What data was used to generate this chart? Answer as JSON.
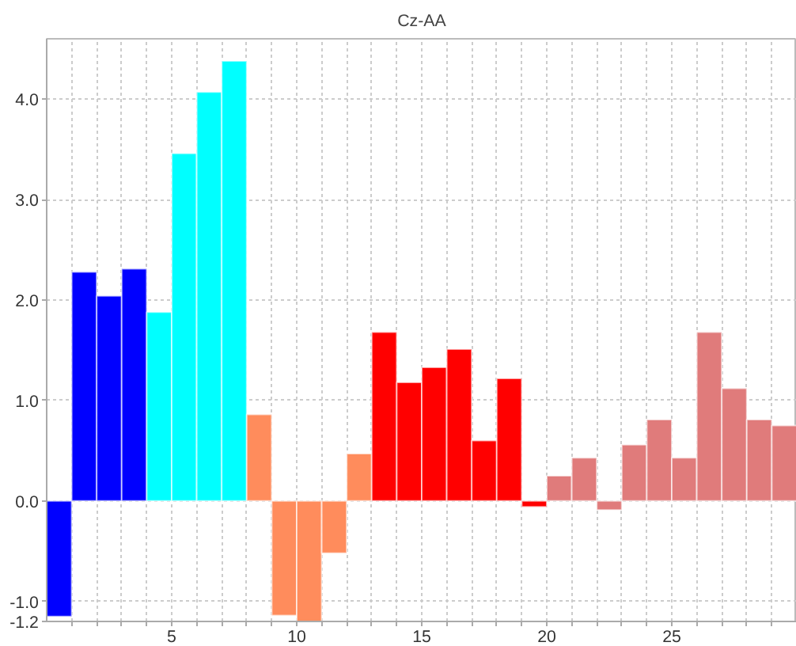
{
  "chart_data": {
    "type": "bar",
    "title": "Cz-AA",
    "x": [
      0.5,
      1.5,
      2.5,
      3.5,
      4.5,
      5.5,
      6.5,
      7.5,
      8.5,
      9.5,
      10.5,
      11.5,
      12.5,
      13.5,
      14.5,
      15.5,
      16.5,
      17.5,
      18.5,
      19.5,
      20.5,
      21.5,
      22.5,
      23.5,
      24.5,
      25.5,
      26.5,
      27.5,
      28.5,
      29.5
    ],
    "values": [
      -1.15,
      2.28,
      2.04,
      2.31,
      1.88,
      3.46,
      4.07,
      4.38,
      0.86,
      -1.14,
      -1.2,
      -0.52,
      0.47,
      1.68,
      1.18,
      1.33,
      1.51,
      0.6,
      1.22,
      -0.06,
      0.25,
      0.43,
      -0.09,
      0.56,
      0.81,
      0.43,
      1.68,
      1.12,
      0.81,
      0.75
    ],
    "colors": [
      "#0000ff",
      "#0000ff",
      "#0000ff",
      "#0000ff",
      "#00ffff",
      "#00ffff",
      "#00ffff",
      "#00ffff",
      "#ff8c5c",
      "#ff8c5c",
      "#ff8c5c",
      "#ff8c5c",
      "#ff8c5c",
      "#ff0000",
      "#ff0000",
      "#ff0000",
      "#ff0000",
      "#ff0000",
      "#ff0000",
      "#ff0000",
      "#e07b7b",
      "#e07b7b",
      "#e07b7b",
      "#e07b7b",
      "#e07b7b",
      "#e07b7b",
      "#e07b7b",
      "#e07b7b",
      "#e07b7b",
      "#e07b7b"
    ],
    "xlim": [
      0,
      30
    ],
    "ylim": [
      -1.2,
      4.6
    ],
    "xticks": [
      {
        "value": 1,
        "label": null
      },
      {
        "value": 2,
        "label": null
      },
      {
        "value": 3,
        "label": null
      },
      {
        "value": 4,
        "label": null
      },
      5,
      {
        "value": 6,
        "label": null
      },
      {
        "value": 7,
        "label": null
      },
      {
        "value": 8,
        "label": null
      },
      {
        "value": 9,
        "label": null
      },
      10,
      {
        "value": 11,
        "label": null
      },
      {
        "value": 12,
        "label": null
      },
      {
        "value": 13,
        "label": null
      },
      {
        "value": 14,
        "label": null
      },
      15,
      {
        "value": 16,
        "label": null
      },
      {
        "value": 17,
        "label": null
      },
      {
        "value": 18,
        "label": null
      },
      {
        "value": 19,
        "label": null
      },
      20,
      {
        "value": 21,
        "label": null
      },
      {
        "value": 22,
        "label": null
      },
      {
        "value": 23,
        "label": null
      },
      {
        "value": 24,
        "label": null
      },
      25,
      {
        "value": 26,
        "label": null
      },
      {
        "value": 27,
        "label": null
      },
      {
        "value": 28,
        "label": null
      },
      {
        "value": 29,
        "label": null
      }
    ],
    "yticks": [
      {
        "value": -1.2,
        "label": "-1.2"
      },
      {
        "value": -1.0,
        "label": "-1.0"
      },
      {
        "value": 0,
        "label": "0.0"
      },
      {
        "value": 1,
        "label": "1.0"
      },
      {
        "value": 2,
        "label": "2.0"
      },
      {
        "value": 3,
        "label": "3.0"
      },
      {
        "value": 4,
        "label": "4.0"
      }
    ],
    "grid": true
  }
}
